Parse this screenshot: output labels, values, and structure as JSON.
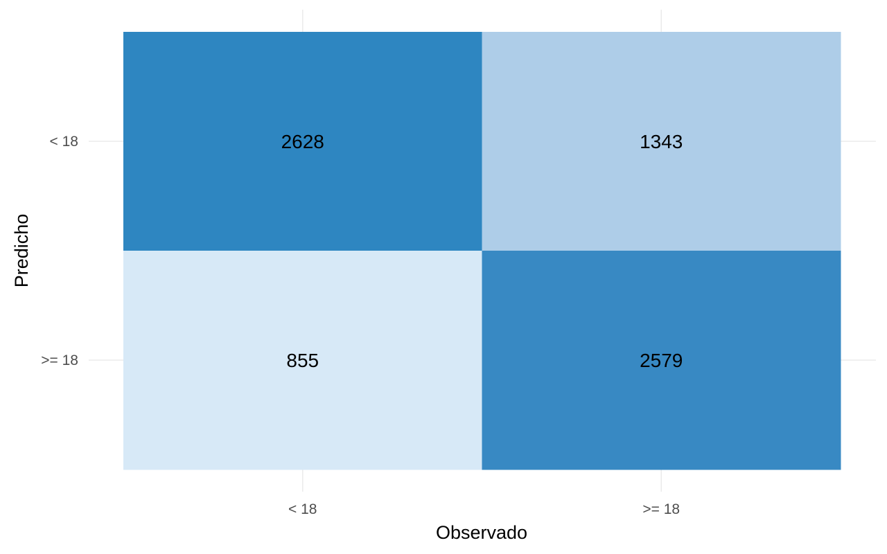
{
  "chart_data": {
    "type": "heatmap",
    "title": "",
    "xlabel": "Observado",
    "ylabel": "Predicho",
    "x_categories": [
      "< 18",
      ">= 18"
    ],
    "y_categories": [
      "< 18",
      ">= 18"
    ],
    "cells": [
      {
        "x": "< 18",
        "y": "< 18",
        "value": 2628,
        "color": "#2e86c1"
      },
      {
        "x": ">= 18",
        "y": "< 18",
        "value": 1343,
        "color": "#aecde8"
      },
      {
        "x": "< 18",
        "y": ">= 18",
        "value": 855,
        "color": "#d7e9f7"
      },
      {
        "x": ">= 18",
        "y": ">= 18",
        "value": 2579,
        "color": "#3889c3"
      }
    ],
    "grid": true,
    "legend": "none"
  }
}
